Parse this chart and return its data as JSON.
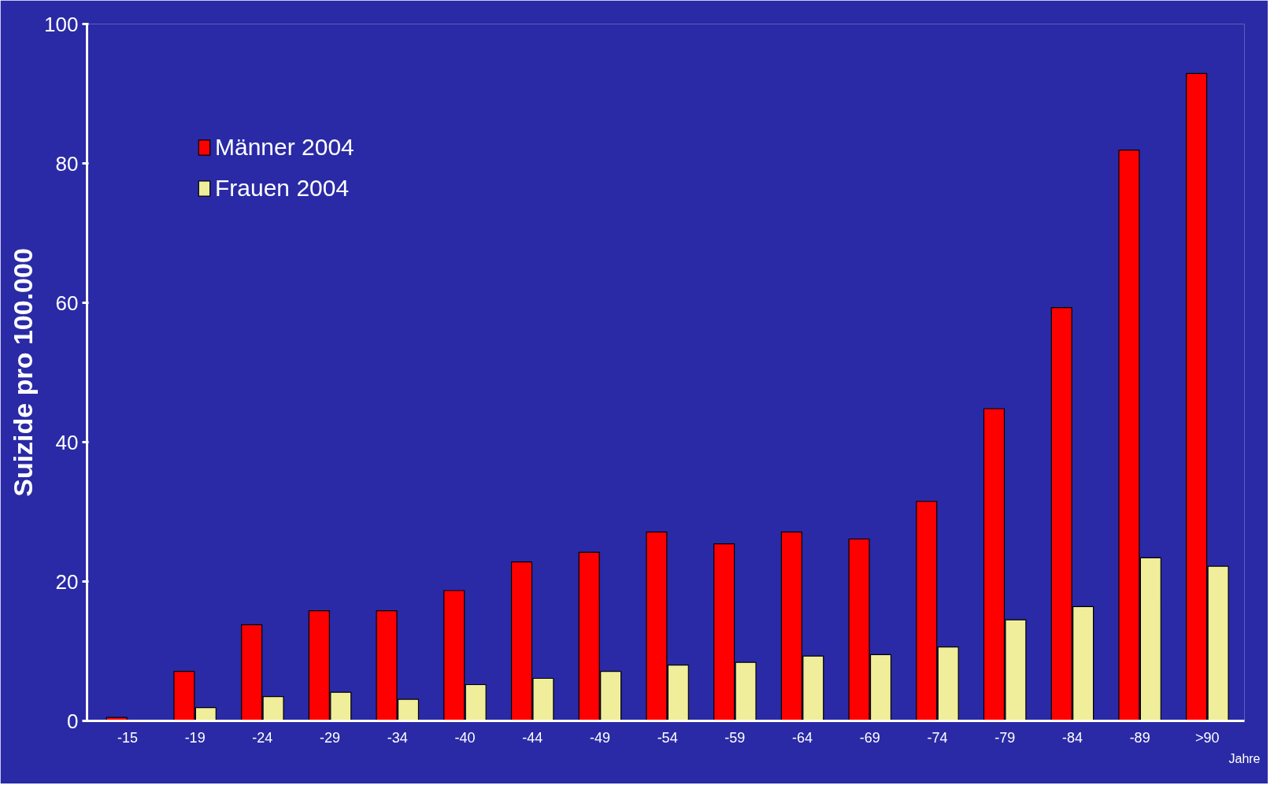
{
  "chart_data": {
    "type": "bar",
    "xlabel": "Jahre",
    "ylabel": "Suizide pro 100.000",
    "categories": [
      "-15",
      "-19",
      "-24",
      "-29",
      "-34",
      "-40",
      "-44",
      "-49",
      "-54",
      "-59",
      "-64",
      "-69",
      "-74",
      "-79",
      "-84",
      "-89",
      ">90"
    ],
    "series": [
      {
        "name": "Männer 2004",
        "color": "#ff0000",
        "values": [
          0.5,
          7.1,
          13.8,
          15.8,
          15.8,
          18.7,
          22.8,
          24.2,
          27.1,
          25.4,
          27.1,
          26.1,
          31.5,
          44.8,
          59.3,
          81.9,
          92.9
        ]
      },
      {
        "name": "Frauen 2004",
        "color": "#f0ee9a",
        "values": [
          null,
          1.9,
          3.5,
          4.1,
          3.1,
          5.2,
          6.1,
          7.1,
          8.0,
          8.4,
          9.3,
          9.5,
          10.6,
          14.5,
          16.4,
          23.4,
          22.2
        ]
      }
    ],
    "ylim": [
      0,
      100
    ],
    "yticks": [
      0,
      20,
      40,
      60,
      80,
      100
    ],
    "grid": false,
    "legend": "top left"
  }
}
